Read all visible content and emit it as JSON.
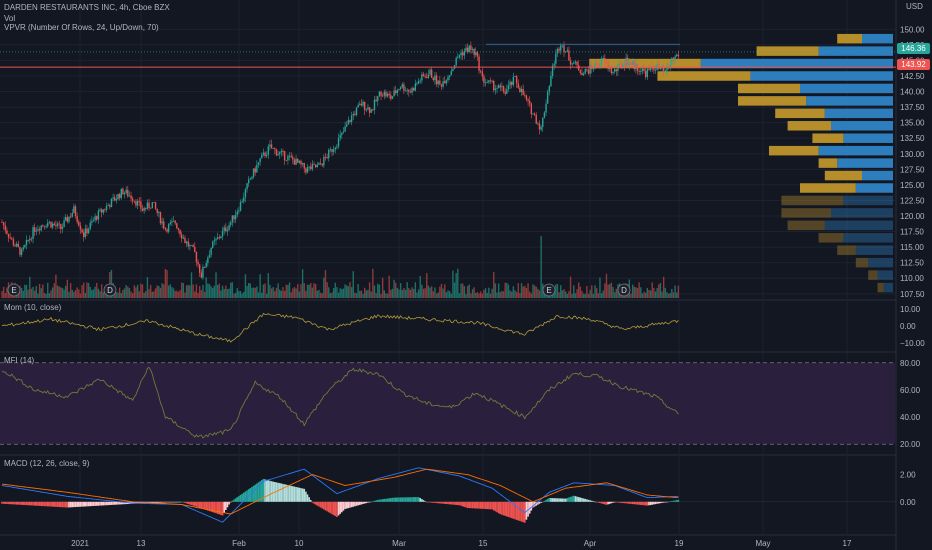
{
  "header": {
    "title": "DARDEN RESTAURANTS INC, 4h, Cboe BZX",
    "vol_label": "Vol",
    "vpvr_label": "VPVR (Number Of Rows, 24, Up/Down, 70)",
    "currency": "USD"
  },
  "price_tags": {
    "current": "146.36",
    "line": "143.92"
  },
  "colors": {
    "up": "#26a69a",
    "down": "#ef5350",
    "bg": "#131722",
    "grid": "#1e2230",
    "vp_up": "#2e7dbd",
    "vp_down": "#b58d2a",
    "mom": "#b59b3c",
    "mfi_line": "#6d7b3a",
    "mfi_band": "#2a1f3d",
    "macd": "#2979ff",
    "signal": "#ff6d00"
  },
  "chart_data": [
    {
      "type": "candlestick",
      "title": "DARDEN RESTAURANTS INC, 4h, Cboe BZX",
      "y_axis_labels": [
        "150.00",
        "147.50",
        "145.00",
        "142.50",
        "140.00",
        "137.50",
        "135.00",
        "132.50",
        "130.00",
        "127.50",
        "125.00",
        "122.50",
        "120.00",
        "117.50",
        "115.00",
        "112.50",
        "110.00",
        "107.50"
      ],
      "ylim": [
        106.5,
        151.5
      ],
      "x_labels": [
        "2021",
        "13",
        "Feb",
        "10",
        "Mar",
        "15",
        "Apr",
        "19",
        "May",
        "17"
      ],
      "close_anchors": [
        [
          0,
          119
        ],
        [
          6,
          116
        ],
        [
          12,
          114
        ],
        [
          20,
          118
        ],
        [
          28,
          119
        ],
        [
          36,
          118
        ],
        [
          44,
          121
        ],
        [
          50,
          117
        ],
        [
          58,
          120
        ],
        [
          66,
          122
        ],
        [
          74,
          124
        ],
        [
          80,
          123
        ],
        [
          86,
          121
        ],
        [
          92,
          122
        ],
        [
          100,
          118
        ],
        [
          106,
          119
        ],
        [
          112,
          116
        ],
        [
          118,
          114
        ],
        [
          122,
          110.5
        ],
        [
          128,
          115
        ],
        [
          134,
          117
        ],
        [
          140,
          119
        ],
        [
          146,
          122
        ],
        [
          152,
          126
        ],
        [
          158,
          129
        ],
        [
          164,
          131
        ],
        [
          170,
          130
        ],
        [
          178,
          129
        ],
        [
          186,
          127.5
        ],
        [
          194,
          128
        ],
        [
          200,
          130
        ],
        [
          208,
          133
        ],
        [
          214,
          136
        ],
        [
          220,
          138
        ],
        [
          226,
          137
        ],
        [
          232,
          140
        ],
        [
          238,
          139
        ],
        [
          244,
          141
        ],
        [
          250,
          140
        ],
        [
          256,
          142
        ],
        [
          262,
          143
        ],
        [
          268,
          141
        ],
        [
          274,
          143
        ],
        [
          280,
          146
        ],
        [
          286,
          147
        ],
        [
          290,
          146
        ],
        [
          294,
          142
        ],
        [
          300,
          141
        ],
        [
          308,
          140
        ],
        [
          314,
          142
        ],
        [
          322,
          138
        ],
        [
          326,
          136
        ],
        [
          330,
          134
        ],
        [
          334,
          140
        ],
        [
          338,
          145
        ],
        [
          342,
          148
        ],
        [
          348,
          145
        ],
        [
          356,
          143
        ],
        [
          362,
          144
        ],
        [
          368,
          145
        ],
        [
          374,
          143
        ],
        [
          382,
          145
        ],
        [
          388,
          144
        ],
        [
          394,
          143
        ],
        [
          400,
          144
        ],
        [
          406,
          143
        ],
        [
          410,
          145
        ],
        [
          414,
          146
        ]
      ],
      "volume_markers": [
        "E",
        "D",
        "E",
        "D"
      ],
      "current_price": 146.36,
      "price_line": 143.92
    },
    {
      "type": "bar",
      "title": "VPVR (Number Of Rows, 24, Up/Down, 70)",
      "orientation": "horizontal",
      "price_rows": [
        108.5,
        110.5,
        112.5,
        114.5,
        116.5,
        118.5,
        120.5,
        122.5,
        124.5,
        126.5,
        128.5,
        130.5,
        132.5,
        134.5,
        136.5,
        138.5,
        140.5,
        142.5,
        144.5,
        146.5,
        148.5
      ],
      "up_volume": [
        3,
        5,
        8,
        12,
        16,
        22,
        20,
        16,
        12,
        10,
        18,
        24,
        16,
        20,
        22,
        28,
        30,
        46,
        62,
        24,
        10
      ],
      "down_volume": [
        2,
        3,
        4,
        6,
        8,
        12,
        16,
        20,
        18,
        12,
        6,
        16,
        10,
        14,
        16,
        22,
        20,
        30,
        36,
        20,
        8
      ]
    },
    {
      "type": "line",
      "title": "Mom (10, close)",
      "y_axis_labels": [
        "10.00",
        "0.00",
        "−10.00"
      ],
      "ylim": [
        -13,
        13
      ],
      "anchors": [
        [
          0,
          0
        ],
        [
          30,
          4
        ],
        [
          60,
          -2
        ],
        [
          90,
          3
        ],
        [
          120,
          -5
        ],
        [
          140,
          -9
        ],
        [
          160,
          7
        ],
        [
          180,
          5
        ],
        [
          200,
          -2
        ],
        [
          230,
          6
        ],
        [
          260,
          4
        ],
        [
          290,
          2
        ],
        [
          320,
          -5
        ],
        [
          340,
          6
        ],
        [
          360,
          4
        ],
        [
          380,
          -2
        ],
        [
          400,
          1
        ],
        [
          414,
          3
        ]
      ]
    },
    {
      "type": "line",
      "title": "MFI (14)",
      "y_axis_labels": [
        "80.00",
        "60.00",
        "40.00",
        "20.00"
      ],
      "ylim": [
        15,
        85
      ],
      "band": [
        20,
        80
      ],
      "anchors": [
        [
          0,
          75
        ],
        [
          20,
          60
        ],
        [
          40,
          55
        ],
        [
          60,
          68
        ],
        [
          80,
          52
        ],
        [
          90,
          78
        ],
        [
          100,
          40
        ],
        [
          120,
          25
        ],
        [
          140,
          30
        ],
        [
          155,
          65
        ],
        [
          170,
          55
        ],
        [
          185,
          35
        ],
        [
          200,
          60
        ],
        [
          215,
          75
        ],
        [
          230,
          72
        ],
        [
          245,
          58
        ],
        [
          260,
          50
        ],
        [
          275,
          47
        ],
        [
          290,
          58
        ],
        [
          300,
          52
        ],
        [
          320,
          40
        ],
        [
          335,
          60
        ],
        [
          350,
          72
        ],
        [
          365,
          70
        ],
        [
          380,
          62
        ],
        [
          400,
          55
        ],
        [
          414,
          42
        ]
      ]
    },
    {
      "type": "line",
      "title": "MACD (12, 26, close, 9)",
      "y_axis_labels": [
        "2.00",
        "0.00"
      ],
      "ylim": [
        -2,
        3
      ],
      "macd_anchors": [
        [
          0,
          1.2
        ],
        [
          40,
          0.4
        ],
        [
          80,
          -0.1
        ],
        [
          110,
          -0.2
        ],
        [
          135,
          -1.5
        ],
        [
          160,
          1.5
        ],
        [
          185,
          2.4
        ],
        [
          205,
          0.6
        ],
        [
          230,
          1.7
        ],
        [
          255,
          2.5
        ],
        [
          280,
          1.9
        ],
        [
          300,
          1.0
        ],
        [
          320,
          -0.8
        ],
        [
          335,
          0.7
        ],
        [
          350,
          1.4
        ],
        [
          375,
          1.2
        ],
        [
          395,
          0.3
        ],
        [
          414,
          0.4
        ]
      ],
      "signal_anchors": [
        [
          0,
          1.3
        ],
        [
          40,
          0.7
        ],
        [
          80,
          0.0
        ],
        [
          110,
          -0.2
        ],
        [
          140,
          -0.9
        ],
        [
          165,
          0.6
        ],
        [
          190,
          2.0
        ],
        [
          210,
          1.2
        ],
        [
          240,
          1.8
        ],
        [
          260,
          2.4
        ],
        [
          285,
          2.0
        ],
        [
          305,
          1.2
        ],
        [
          325,
          0.0
        ],
        [
          345,
          1.0
        ],
        [
          370,
          1.4
        ],
        [
          395,
          0.5
        ],
        [
          414,
          0.3
        ]
      ]
    }
  ]
}
